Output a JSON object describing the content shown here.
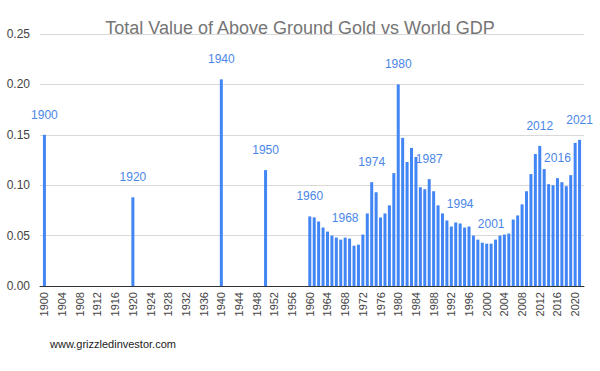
{
  "chart_data": {
    "type": "bar",
    "title": "Total Value of Above Ground Gold vs World GDP",
    "source": "www.grizzledinvestor.com",
    "color": "#4285f4",
    "x": [
      1900,
      1920,
      1940,
      1950,
      1960,
      1961,
      1962,
      1963,
      1964,
      1965,
      1966,
      1967,
      1968,
      1969,
      1970,
      1971,
      1972,
      1973,
      1974,
      1975,
      1976,
      1977,
      1978,
      1979,
      1980,
      1981,
      1982,
      1983,
      1984,
      1985,
      1986,
      1987,
      1988,
      1989,
      1990,
      1991,
      1992,
      1993,
      1994,
      1995,
      1996,
      1997,
      1998,
      1999,
      2000,
      2001,
      2002,
      2003,
      2004,
      2005,
      2006,
      2007,
      2008,
      2009,
      2010,
      2011,
      2012,
      2013,
      2014,
      2015,
      2016,
      2017,
      2018,
      2019,
      2020,
      2021
    ],
    "values": [
      0.15,
      0.088,
      0.205,
      0.115,
      0.069,
      0.068,
      0.064,
      0.058,
      0.054,
      0.05,
      0.048,
      0.046,
      0.048,
      0.047,
      0.04,
      0.041,
      0.051,
      0.072,
      0.103,
      0.093,
      0.068,
      0.072,
      0.08,
      0.112,
      0.2,
      0.147,
      0.123,
      0.137,
      0.128,
      0.098,
      0.096,
      0.106,
      0.094,
      0.08,
      0.072,
      0.065,
      0.059,
      0.063,
      0.062,
      0.058,
      0.059,
      0.05,
      0.046,
      0.043,
      0.042,
      0.042,
      0.046,
      0.05,
      0.051,
      0.052,
      0.066,
      0.07,
      0.081,
      0.094,
      0.111,
      0.131,
      0.139,
      0.116,
      0.101,
      0.1,
      0.107,
      0.103,
      0.099,
      0.11,
      0.142,
      0.145
    ],
    "annotations": [
      {
        "x": 1900,
        "text": "1900"
      },
      {
        "x": 1920,
        "text": "1920"
      },
      {
        "x": 1940,
        "text": "1940"
      },
      {
        "x": 1950,
        "text": "1950"
      },
      {
        "x": 1960,
        "text": "1960"
      },
      {
        "x": 1968,
        "text": "1968"
      },
      {
        "x": 1974,
        "text": "1974"
      },
      {
        "x": 1980,
        "text": "1980"
      },
      {
        "x": 1987,
        "text": "1987"
      },
      {
        "x": 1994,
        "text": "1994"
      },
      {
        "x": 2001,
        "text": "2001"
      },
      {
        "x": 2012,
        "text": "2012"
      },
      {
        "x": 2016,
        "text": "2016"
      },
      {
        "x": 2021,
        "text": "2021"
      }
    ],
    "xlim": [
      1899,
      2022
    ],
    "xticks": [
      1900,
      1904,
      1908,
      1912,
      1916,
      1920,
      1924,
      1928,
      1932,
      1936,
      1940,
      1944,
      1948,
      1952,
      1956,
      1960,
      1964,
      1968,
      1972,
      1976,
      1980,
      1984,
      1988,
      1992,
      1996,
      2000,
      2004,
      2008,
      2012,
      2016,
      2020
    ],
    "ylim": [
      0,
      0.25
    ],
    "yticks": [
      {
        "value": 0,
        "label": "0.00"
      },
      0.05,
      {
        "value": 0.1,
        "label": "0.10"
      },
      0.15,
      {
        "value": 0.2,
        "label": "0.20"
      },
      0.25
    ],
    "grid": true
  }
}
